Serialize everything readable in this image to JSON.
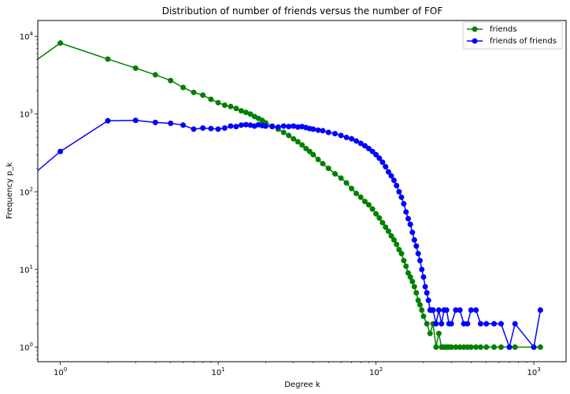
{
  "chart_data": {
    "type": "line",
    "title": "Distribution of number of friends versus the number of FOF",
    "xlabel": "Degree k",
    "ylabel": "Frequency p_k",
    "xscale": "log",
    "yscale": "log",
    "xlim": [
      0.72,
      1600
    ],
    "ylim": [
      0.65,
      16000
    ],
    "x_ticks": [
      1,
      10,
      100,
      1000
    ],
    "x_tick_labels": [
      "10^0",
      "10^1",
      "10^2",
      "10^3"
    ],
    "y_ticks": [
      1,
      10,
      100,
      1000,
      10000
    ],
    "y_tick_labels": [
      "10^0",
      "10^1",
      "10^2",
      "10^3",
      "10^4"
    ],
    "legend_position": "top-right",
    "grid": false,
    "series": [
      {
        "name": "friends",
        "color": "#008000",
        "x": [
          0.5,
          1,
          2,
          3,
          4,
          5,
          6,
          7,
          8,
          9,
          10,
          11,
          12,
          13,
          14,
          15,
          16,
          17,
          18,
          19,
          20,
          22,
          24,
          26,
          28,
          30,
          32,
          34,
          36,
          38,
          40,
          43,
          46,
          50,
          55,
          60,
          65,
          70,
          75,
          80,
          85,
          90,
          95,
          100,
          105,
          110,
          115,
          120,
          125,
          130,
          135,
          140,
          145,
          150,
          155,
          160,
          165,
          170,
          175,
          180,
          185,
          190,
          195,
          200,
          210,
          220,
          230,
          240,
          250,
          260,
          270,
          280,
          290,
          300,
          320,
          340,
          360,
          380,
          400,
          430,
          460,
          500,
          560,
          620,
          700,
          760,
          1000,
          1100
        ],
        "values": [
          3000,
          8200,
          5100,
          3900,
          3200,
          2700,
          2200,
          1900,
          1750,
          1550,
          1400,
          1300,
          1250,
          1180,
          1100,
          1050,
          1000,
          930,
          880,
          830,
          770,
          700,
          640,
          580,
          530,
          480,
          440,
          400,
          360,
          330,
          300,
          260,
          230,
          200,
          170,
          150,
          130,
          110,
          95,
          85,
          75,
          68,
          60,
          52,
          46,
          40,
          35,
          31,
          27,
          24,
          21,
          18,
          16,
          13,
          11,
          9,
          8,
          7,
          6,
          5,
          4,
          3.5,
          3,
          2.5,
          2,
          1.5,
          2,
          1,
          1.5,
          1,
          1,
          1,
          1,
          1,
          1,
          1,
          1,
          1,
          1,
          1,
          1,
          1,
          1,
          1,
          1,
          1,
          1,
          1
        ]
      },
      {
        "name": "friends of friends",
        "color": "#0000ff",
        "x": [
          0.5,
          1,
          2,
          3,
          4,
          5,
          6,
          7,
          8,
          9,
          10,
          11,
          12,
          13,
          14,
          15,
          16,
          17,
          18,
          19,
          20,
          22,
          24,
          26,
          28,
          30,
          32,
          34,
          36,
          38,
          40,
          43,
          46,
          50,
          55,
          60,
          65,
          70,
          75,
          80,
          85,
          90,
          95,
          100,
          105,
          110,
          115,
          120,
          125,
          130,
          135,
          140,
          145,
          150,
          155,
          160,
          165,
          170,
          175,
          180,
          185,
          190,
          195,
          200,
          205,
          210,
          215,
          220,
          225,
          230,
          240,
          250,
          260,
          270,
          280,
          290,
          300,
          320,
          340,
          360,
          380,
          400,
          430,
          460,
          500,
          560,
          620,
          700,
          760,
          1000,
          1100
        ],
        "values": [
          100,
          330,
          820,
          830,
          780,
          760,
          720,
          640,
          660,
          650,
          640,
          660,
          700,
          690,
          720,
          730,
          720,
          700,
          730,
          710,
          700,
          690,
          680,
          700,
          690,
          700,
          680,
          690,
          670,
          650,
          640,
          620,
          610,
          580,
          560,
          530,
          500,
          480,
          450,
          420,
          390,
          360,
          330,
          300,
          270,
          240,
          210,
          180,
          160,
          140,
          120,
          100,
          85,
          70,
          55,
          45,
          38,
          30,
          24,
          20,
          16,
          13,
          10,
          8,
          6,
          5,
          4,
          3,
          3,
          3,
          2,
          3,
          2,
          3,
          3,
          2,
          2,
          3,
          3,
          2,
          2,
          3,
          3,
          2,
          2,
          2,
          2,
          1,
          2,
          1,
          3
        ]
      }
    ]
  }
}
